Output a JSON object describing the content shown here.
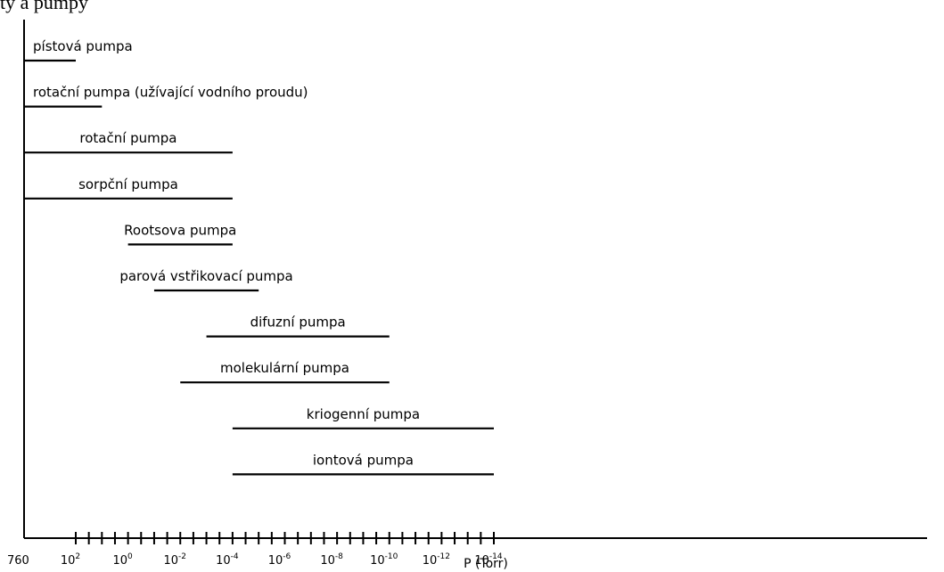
{
  "header_fragment": "ty a pumpy",
  "chart_data": {
    "type": "bar",
    "orientation": "horizontal-range",
    "xlabel": "P (Torr)",
    "x_scale": "log",
    "x_direction": "decreasing pressure left to right",
    "x_start_label": "760",
    "xlim": [
      760,
      1e-14
    ],
    "ticks": [
      {
        "base": "10",
        "exp": "2"
      },
      {
        "base": "10",
        "exp": "0"
      },
      {
        "base": "10",
        "exp": "-2"
      },
      {
        "base": "10",
        "exp": "-4"
      },
      {
        "base": "10",
        "exp": "-6"
      },
      {
        "base": "10",
        "exp": "-8"
      },
      {
        "base": "10",
        "exp": "-10"
      },
      {
        "base": "10",
        "exp": "-12"
      },
      {
        "base": "10",
        "exp": "-14"
      }
    ],
    "ranges": [
      {
        "label": "pístová  pumpa",
        "from": 760,
        "to": 100
      },
      {
        "label": "rotační pumpa (užívající vodního proudu)",
        "from": 760,
        "to": 10
      },
      {
        "label": "rotační pumpa",
        "from": 760,
        "to": 0.0001
      },
      {
        "label": "sorpční pumpa",
        "from": 760,
        "to": 0.0001
      },
      {
        "label": "Rootsova pumpa",
        "from": 1,
        "to": 0.0001
      },
      {
        "label": "parová vstřikovací pumpa",
        "from": 0.1,
        "to": 1e-05
      },
      {
        "label": "difuzní pumpa",
        "from": 0.001,
        "to": 1e-10
      },
      {
        "label": "molekulární pumpa",
        "from": 0.01,
        "to": 1e-10
      },
      {
        "label": "kriogenní pumpa",
        "from": 0.0001,
        "to": 1e-14
      },
      {
        "label": "iontová pumpa",
        "from": 0.0001,
        "to": 1e-14
      }
    ],
    "grid": false,
    "legend": "none"
  }
}
